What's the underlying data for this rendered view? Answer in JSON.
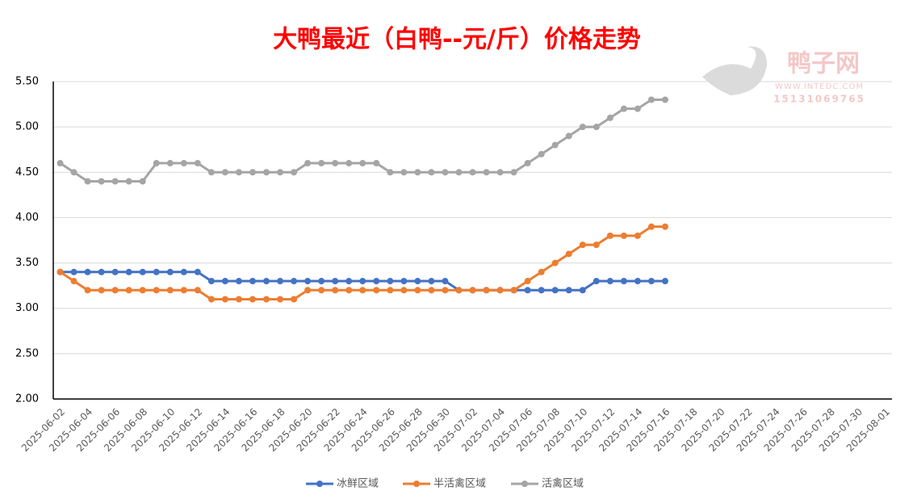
{
  "chart_data": {
    "type": "line",
    "title": "大鸭最近（白鸭--元/斤）价格走势",
    "watermark": {
      "brand": "鸭子网",
      "site": "WWW.INTEDC.COM",
      "phone": "15131069765"
    },
    "categories": [
      "2025-06-02",
      null,
      "2025-06-04",
      null,
      "2025-06-06",
      null,
      "2025-06-08",
      null,
      "2025-06-10",
      null,
      "2025-06-12",
      null,
      "2025-06-14",
      null,
      "2025-06-16",
      null,
      "2025-06-18",
      null,
      "2025-06-20",
      null,
      "2025-06-22",
      null,
      "2025-06-24",
      null,
      "2025-06-26",
      null,
      "2025-06-28",
      null,
      "2025-06-30",
      null,
      "2025-07-02",
      null,
      "2025-07-04",
      null,
      "2025-07-06",
      null,
      "2025-07-08",
      null,
      "2025-07-10",
      null,
      "2025-07-12",
      null,
      "2025-07-14",
      null,
      "2025-07-16",
      null,
      "2025-07-18",
      null,
      "2025-07-20",
      null,
      "2025-07-22",
      null,
      "2025-07-24",
      null,
      "2025-07-26",
      null,
      "2025-07-28",
      null,
      "2025-07-30",
      null,
      "2025-08-01"
    ],
    "series": [
      {
        "name": "冰鲜区域",
        "color": "#4472c4",
        "values": [
          3.4,
          3.4,
          3.4,
          3.4,
          3.4,
          3.4,
          3.4,
          3.4,
          3.4,
          3.4,
          3.4,
          3.3,
          3.3,
          3.3,
          3.3,
          3.3,
          3.3,
          3.3,
          3.3,
          3.3,
          3.3,
          3.3,
          3.3,
          3.3,
          3.3,
          3.3,
          3.3,
          3.3,
          3.3,
          3.2,
          3.2,
          3.2,
          3.2,
          3.2,
          3.2,
          3.2,
          3.2,
          3.2,
          3.2,
          3.3,
          3.3,
          3.3,
          3.3,
          3.3,
          3.3,
          null,
          null,
          null,
          null,
          null,
          null,
          null,
          null,
          null,
          null,
          null,
          null,
          null,
          null,
          null,
          null
        ]
      },
      {
        "name": "半活禽区域",
        "color": "#ed7d31",
        "values": [
          3.4,
          3.3,
          3.2,
          3.2,
          3.2,
          3.2,
          3.2,
          3.2,
          3.2,
          3.2,
          3.2,
          3.1,
          3.1,
          3.1,
          3.1,
          3.1,
          3.1,
          3.1,
          3.2,
          3.2,
          3.2,
          3.2,
          3.2,
          3.2,
          3.2,
          3.2,
          3.2,
          3.2,
          3.2,
          3.2,
          3.2,
          3.2,
          3.2,
          3.2,
          3.3,
          3.4,
          3.5,
          3.6,
          3.7,
          3.7,
          3.8,
          3.8,
          3.8,
          3.9,
          3.9,
          null,
          null,
          null,
          null,
          null,
          null,
          null,
          null,
          null,
          null,
          null,
          null,
          null,
          null,
          null,
          null
        ]
      },
      {
        "name": "活禽区域",
        "color": "#a5a5a5",
        "values": [
          4.6,
          4.5,
          4.4,
          4.4,
          4.4,
          4.4,
          4.4,
          4.6,
          4.6,
          4.6,
          4.6,
          4.5,
          4.5,
          4.5,
          4.5,
          4.5,
          4.5,
          4.5,
          4.6,
          4.6,
          4.6,
          4.6,
          4.6,
          4.6,
          4.5,
          4.5,
          4.5,
          4.5,
          4.5,
          4.5,
          4.5,
          4.5,
          4.5,
          4.5,
          4.6,
          4.7,
          4.8,
          4.9,
          5.0,
          5.0,
          5.1,
          5.2,
          5.2,
          5.3,
          5.3,
          null,
          null,
          null,
          null,
          null,
          null,
          null,
          null,
          null,
          null,
          null,
          null,
          null,
          null,
          null,
          null
        ]
      }
    ],
    "ylim": [
      2.0,
      5.5
    ],
    "yticks": [
      {
        "value": 2.0,
        "label": "2.00"
      },
      {
        "value": 2.5,
        "label": "2.50"
      },
      {
        "value": 3.0,
        "label": "3.00"
      },
      {
        "value": 3.5,
        "label": "3.50"
      },
      {
        "value": 4.0,
        "label": "4.00"
      },
      {
        "value": 4.5,
        "label": "4.50"
      },
      {
        "value": 5.0,
        "label": "5.00"
      },
      {
        "value": 5.5,
        "label": "5.50"
      }
    ],
    "grid": true,
    "legend": "bottom"
  }
}
